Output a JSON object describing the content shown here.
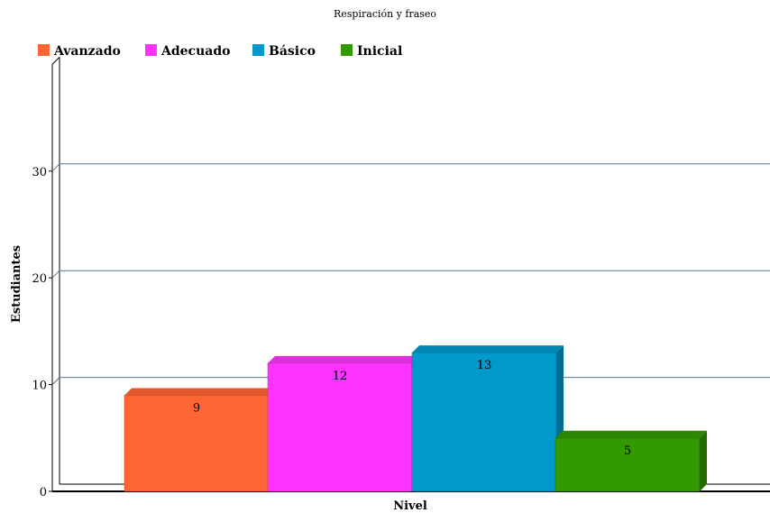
{
  "chart_data": {
    "type": "bar",
    "title": "Respiración y fraseo",
    "xlabel": "Nivel",
    "ylabel": "Estudiantes",
    "categories": [
      "Avanzado",
      "Adecuado",
      "Básico",
      "Inicial"
    ],
    "values": [
      9,
      12,
      13,
      5
    ],
    "colors": [
      "#ff6633",
      "#ff33ff",
      "#0099cc",
      "#339900"
    ],
    "side_colors": [
      "#b84a25",
      "#b524b5",
      "#006d91",
      "#246c00"
    ],
    "top_colors": [
      "#e05a2d",
      "#e02de0",
      "#0087b4",
      "#2d8700"
    ],
    "yticks": [
      0,
      10,
      20,
      30
    ],
    "ylim": [
      0,
      40
    ],
    "grid": true,
    "legend_position": "top-left",
    "legend": [
      "Avanzado",
      "Adecuado",
      "Básico",
      "Inicial"
    ],
    "bar_style": "3d"
  }
}
